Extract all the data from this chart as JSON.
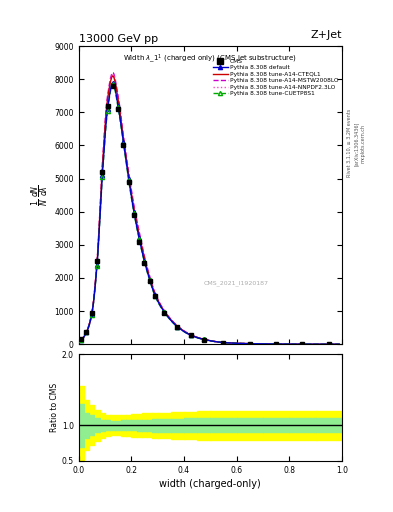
{
  "title_top": "13000 GeV pp",
  "title_right": "Z+Jet",
  "xlabel": "width (charged-only)",
  "ylabel_ratio": "Ratio to CMS",
  "watermark": "CMS_2021_I1920187",
  "rivet_text": "Rivet 3.1.10, ≥ 3.2M events",
  "arxiv_text": "[arXiv:1306.3436]",
  "mcplots_text": "mcplots.cern.ch",
  "xlim": [
    0.0,
    1.0
  ],
  "ylim_main": [
    0,
    9000
  ],
  "ylim_ratio": [
    0.5,
    2.0
  ],
  "yticks_main": [
    0,
    1000,
    2000,
    3000,
    4000,
    5000,
    6000,
    7000,
    8000,
    9000
  ],
  "color_cms": "#000000",
  "color_default": "#0000cc",
  "color_cteql1": "#cc0000",
  "color_mstw": "#cc00cc",
  "color_nnpdf": "#ff44cc",
  "color_cuetp8s1": "#00aa00",
  "x_data": [
    0.01,
    0.03,
    0.05,
    0.07,
    0.09,
    0.11,
    0.13,
    0.15,
    0.17,
    0.19,
    0.21,
    0.23,
    0.25,
    0.27,
    0.29,
    0.325,
    0.375,
    0.425,
    0.475,
    0.55,
    0.65,
    0.75,
    0.85,
    0.95
  ],
  "cms_values": [
    150,
    380,
    950,
    2500,
    5200,
    7200,
    7800,
    7100,
    6000,
    4900,
    3900,
    3100,
    2450,
    1900,
    1450,
    950,
    520,
    270,
    140,
    48,
    15,
    5,
    1.5,
    0.4
  ],
  "pythia_default": [
    140,
    360,
    900,
    2400,
    5100,
    7100,
    7900,
    7200,
    6100,
    5000,
    4000,
    3200,
    2500,
    1950,
    1480,
    980,
    530,
    275,
    145,
    50,
    16,
    5.5,
    1.6,
    0.4
  ],
  "pythia_cteql1": [
    145,
    370,
    920,
    2450,
    5300,
    7400,
    8100,
    7400,
    6200,
    5100,
    4100,
    3300,
    2600,
    2000,
    1520,
    1000,
    545,
    285,
    148,
    51,
    16.5,
    5.5,
    1.7,
    0.4
  ],
  "pythia_mstw": [
    148,
    380,
    940,
    2500,
    5400,
    7500,
    8200,
    7500,
    6300,
    5200,
    4200,
    3400,
    2650,
    2050,
    1550,
    1020,
    555,
    290,
    150,
    52,
    17,
    5.8,
    1.7,
    0.45
  ],
  "pythia_nnpdf": [
    146,
    375,
    930,
    2480,
    5350,
    7450,
    8150,
    7450,
    6250,
    5150,
    4150,
    3350,
    2620,
    2030,
    1535,
    1010,
    550,
    288,
    149,
    51.5,
    16.8,
    5.7,
    1.7,
    0.42
  ],
  "pythia_cuetp8s1": [
    138,
    355,
    890,
    2370,
    5050,
    7050,
    7850,
    7150,
    6050,
    4950,
    3970,
    3170,
    2480,
    1930,
    1460,
    965,
    525,
    272,
    143,
    49,
    15.8,
    5.3,
    1.6,
    0.4
  ],
  "ratio_yellow_top": [
    1.55,
    1.35,
    1.28,
    1.22,
    1.18,
    1.15,
    1.14,
    1.14,
    1.15,
    1.15,
    1.16,
    1.16,
    1.17,
    1.17,
    1.18,
    1.18,
    1.19,
    1.19,
    1.2,
    1.2,
    1.2,
    1.2,
    1.2,
    1.2
  ],
  "ratio_yellow_bottom": [
    0.45,
    0.65,
    0.72,
    0.78,
    0.82,
    0.85,
    0.86,
    0.86,
    0.85,
    0.85,
    0.84,
    0.84,
    0.83,
    0.83,
    0.82,
    0.82,
    0.81,
    0.81,
    0.8,
    0.8,
    0.8,
    0.8,
    0.8,
    0.8
  ],
  "ratio_green_top": [
    1.3,
    1.18,
    1.14,
    1.1,
    1.08,
    1.07,
    1.06,
    1.06,
    1.07,
    1.07,
    1.07,
    1.08,
    1.08,
    1.08,
    1.09,
    1.09,
    1.09,
    1.1,
    1.1,
    1.1,
    1.1,
    1.1,
    1.1,
    1.1
  ],
  "ratio_green_bottom": [
    0.7,
    0.82,
    0.86,
    0.9,
    0.92,
    0.93,
    0.94,
    0.94,
    0.93,
    0.93,
    0.93,
    0.92,
    0.92,
    0.92,
    0.91,
    0.91,
    0.91,
    0.9,
    0.9,
    0.9,
    0.9,
    0.9,
    0.9,
    0.9
  ]
}
